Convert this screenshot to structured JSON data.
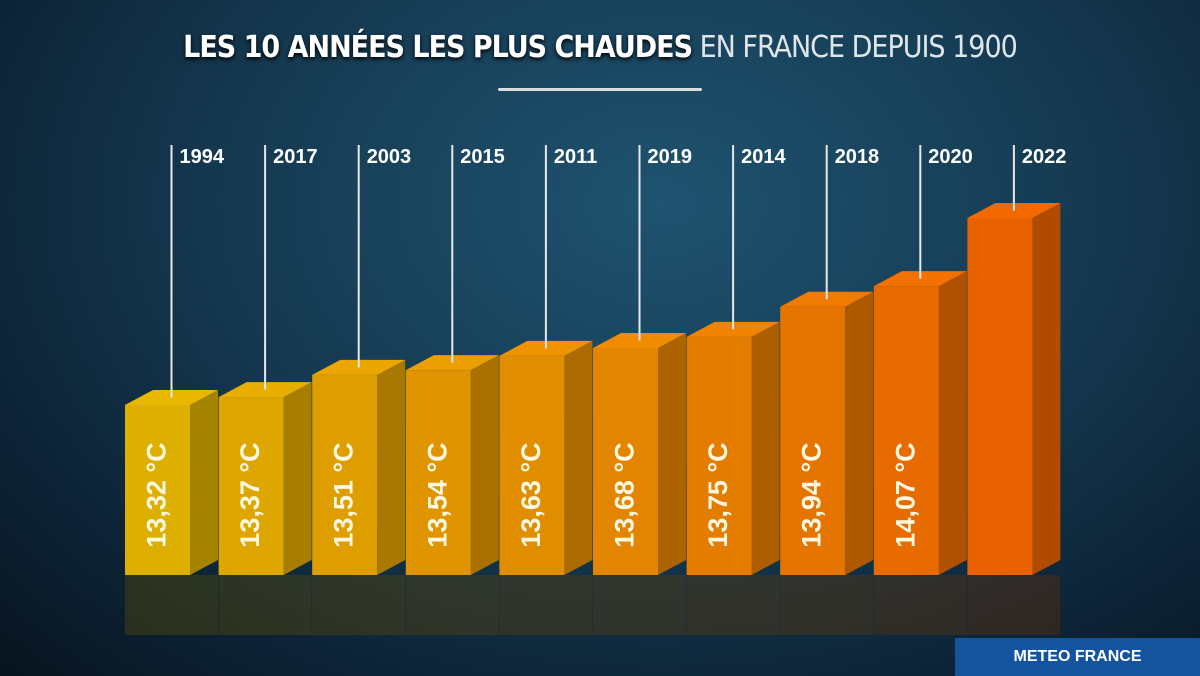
{
  "title_bold": "LES 10 ANNÉES LES PLUS CHAUDES",
  "title_light": "EN FRANCE DEPUIS 1900",
  "source": "METEO FRANCE",
  "chart_data": {
    "type": "bar",
    "categories": [
      "1994",
      "2017",
      "2003",
      "2015",
      "2011",
      "2019",
      "2014",
      "2018",
      "2020",
      "2022"
    ],
    "values": [
      13.32,
      13.37,
      13.51,
      13.54,
      13.63,
      13.68,
      13.75,
      13.94,
      14.07,
      14.5
    ],
    "labels": [
      "13,32 °C",
      "13,37 °C",
      "13,51 °C",
      "13,54 °C",
      "13,63 °C",
      "13,68 °C",
      "13,75 °C",
      "13,94 °C",
      "14,07 °C",
      ""
    ],
    "colors": {
      "low": "#e8b800",
      "high": "#f46800"
    }
  }
}
